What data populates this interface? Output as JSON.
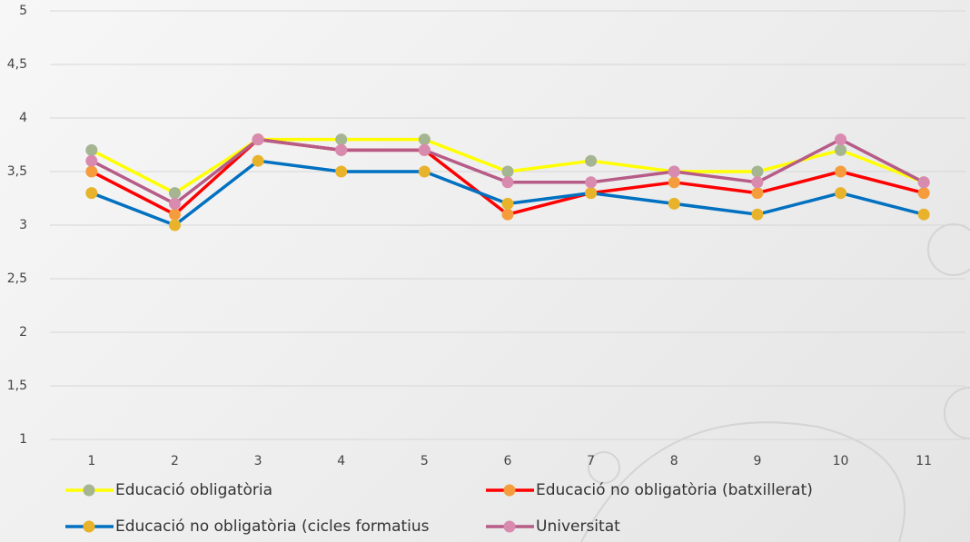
{
  "chart_data": {
    "type": "line",
    "categories": [
      "1",
      "2",
      "3",
      "4",
      "5",
      "6",
      "7",
      "8",
      "9",
      "10",
      "11"
    ],
    "series": [
      {
        "name": "Educació obligatòria",
        "color": "#ffff00",
        "marker_color": "#a5b592",
        "values": [
          3.7,
          3.3,
          3.8,
          3.8,
          3.8,
          3.5,
          3.6,
          3.5,
          3.5,
          3.7,
          3.4
        ]
      },
      {
        "name": "Educació no obligatòria (batxillerat)",
        "color": "#ff0000",
        "marker_color": "#f59d3d",
        "values": [
          3.5,
          3.1,
          3.8,
          3.7,
          3.7,
          3.1,
          3.3,
          3.4,
          3.3,
          3.5,
          3.3
        ]
      },
      {
        "name": "Educació no obligatòria (cicles formatius",
        "color": "#0070c0",
        "marker_color": "#e8b32a",
        "values": [
          3.3,
          3.0,
          3.6,
          3.5,
          3.5,
          3.2,
          3.3,
          3.2,
          3.1,
          3.3,
          3.1
        ]
      },
      {
        "name": "Universitat",
        "color": "#b65c87",
        "marker_color": "#d88aaf",
        "values": [
          3.6,
          3.2,
          3.8,
          3.7,
          3.7,
          3.4,
          3.4,
          3.5,
          3.4,
          3.8,
          3.4
        ]
      }
    ],
    "ylim": [
      1,
      5
    ],
    "yticks": [
      1,
      {
        "value": 1.5,
        "label": "1,5"
      },
      2,
      {
        "value": 2.5,
        "label": "2,5"
      },
      3,
      {
        "value": 3.5,
        "label": "3,5"
      },
      4,
      {
        "value": 4.5,
        "label": "4,5"
      },
      5
    ],
    "grid": true,
    "legend": "bottom"
  }
}
